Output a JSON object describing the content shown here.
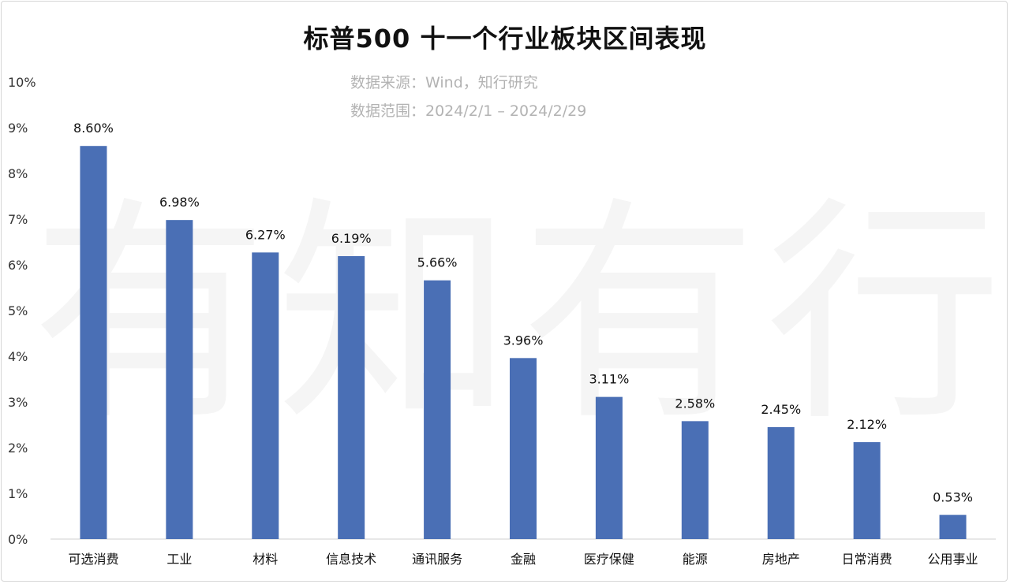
{
  "watermark": "有知有行",
  "chart_data": {
    "type": "bar",
    "title": "标普500 十一个行业板块区间表现",
    "source_line": "数据来源：Wind，知行研究",
    "range_line": "数据范围：2024/2/1 – 2024/2/29",
    "categories": [
      "可选消费",
      "工业",
      "材料",
      "信息技术",
      "通讯服务",
      "金融",
      "医疗保健",
      "能源",
      "房地产",
      "日常消费",
      "公用事业"
    ],
    "values": [
      8.6,
      6.98,
      6.27,
      6.19,
      5.66,
      3.96,
      3.11,
      2.58,
      2.45,
      2.12,
      0.53
    ],
    "data_labels": [
      "8.60%",
      "6.98%",
      "6.27%",
      "6.19%",
      "5.66%",
      "3.96%",
      "3.11%",
      "2.58%",
      "2.45%",
      "2.12%",
      "0.53%"
    ],
    "y_ticks": [
      "0%",
      "1%",
      "2%",
      "3%",
      "4%",
      "5%",
      "6%",
      "7%",
      "8%",
      "9%",
      "10%"
    ],
    "ylim": [
      0,
      10
    ],
    "grid": false,
    "legend": "none",
    "bar_color": "#4a6fb5"
  }
}
